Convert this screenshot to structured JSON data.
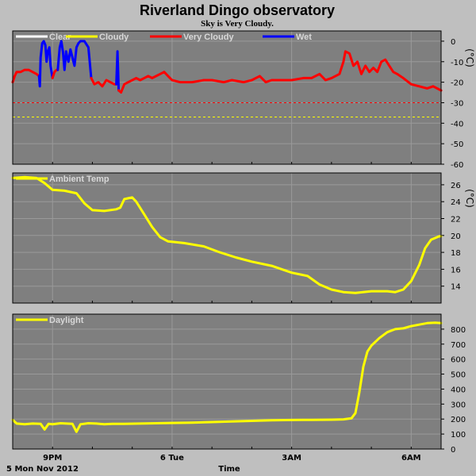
{
  "page": {
    "title": "Riverland Dingo observatory",
    "subtitle": "Sky is Very Cloudy.",
    "date_label": "5 Mon Nov 2012",
    "time_label": "Time"
  },
  "chart_data": [
    {
      "type": "line",
      "id": "sky",
      "unit": "(°C)",
      "ylim": [
        -60,
        5
      ],
      "yticks": [
        0,
        -10,
        -20,
        -30,
        -40,
        -50,
        -60
      ],
      "grid": true,
      "legend_placement": "top-left",
      "legend": [
        {
          "name": "Clear",
          "color": "#ffffff"
        },
        {
          "name": "Cloudy",
          "color": "#ffff00"
        },
        {
          "name": "Very Cloudy",
          "color": "#ff0000"
        },
        {
          "name": "Wet",
          "color": "#0000ff"
        }
      ],
      "thresholds": [
        {
          "value": -30,
          "color": "#ff0000",
          "style": "dashed"
        },
        {
          "value": -37,
          "color": "#ffff00",
          "style": "dashed"
        }
      ],
      "segments": [
        {
          "color": "#ff0000",
          "points": [
            [
              0,
              -20
            ],
            [
              0.05,
              -17
            ],
            [
              0.1,
              -15
            ],
            [
              0.2,
              -15
            ],
            [
              0.3,
              -14
            ],
            [
              0.4,
              -14
            ],
            [
              0.5,
              -15
            ],
            [
              0.6,
              -16
            ],
            [
              0.66,
              -17
            ]
          ]
        },
        {
          "color": "#0000ff",
          "points": [
            [
              0.66,
              -17
            ],
            [
              0.68,
              -22
            ],
            [
              0.7,
              -8
            ],
            [
              0.74,
              -1
            ],
            [
              0.78,
              0
            ],
            [
              0.82,
              -2
            ],
            [
              0.85,
              -10
            ],
            [
              0.88,
              -5
            ],
            [
              0.92,
              -3
            ],
            [
              0.95,
              -12
            ],
            [
              1.0,
              -18
            ]
          ]
        },
        {
          "color": "#ff0000",
          "points": [
            [
              1.0,
              -18
            ],
            [
              1.05,
              -15
            ],
            [
              1.1,
              -14
            ],
            [
              1.13,
              -14
            ]
          ]
        },
        {
          "color": "#0000ff",
          "points": [
            [
              1.13,
              -14
            ],
            [
              1.18,
              -3
            ],
            [
              1.22,
              0
            ],
            [
              1.26,
              -5
            ],
            [
              1.3,
              -14
            ],
            [
              1.34,
              -5
            ],
            [
              1.37,
              -8
            ],
            [
              1.4,
              -10
            ],
            [
              1.45,
              -4
            ],
            [
              1.5,
              -8
            ],
            [
              1.55,
              -12
            ],
            [
              1.6,
              -3
            ],
            [
              1.65,
              -1
            ],
            [
              1.7,
              0
            ],
            [
              1.8,
              0
            ],
            [
              1.9,
              -3
            ],
            [
              1.97,
              -18
            ]
          ]
        },
        {
          "color": "#ff0000",
          "points": [
            [
              1.97,
              -18
            ],
            [
              2.05,
              -21
            ],
            [
              2.15,
              -20
            ],
            [
              2.25,
              -22
            ],
            [
              2.35,
              -19
            ],
            [
              2.45,
              -20
            ],
            [
              2.55,
              -21
            ],
            [
              2.6,
              -21
            ]
          ]
        },
        {
          "color": "#0000ff",
          "points": [
            [
              2.6,
              -21
            ],
            [
              2.63,
              -5
            ],
            [
              2.66,
              -24
            ]
          ]
        },
        {
          "color": "#ff0000",
          "points": [
            [
              2.66,
              -24
            ],
            [
              2.72,
              -25
            ],
            [
              2.8,
              -21
            ],
            [
              2.9,
              -20
            ],
            [
              3.0,
              -19
            ],
            [
              3.1,
              -18
            ],
            [
              3.2,
              -19
            ],
            [
              3.3,
              -18
            ],
            [
              3.4,
              -17
            ],
            [
              3.5,
              -18
            ],
            [
              3.6,
              -17
            ],
            [
              3.7,
              -16
            ],
            [
              3.8,
              -15
            ],
            [
              3.9,
              -17
            ],
            [
              4.0,
              -19
            ],
            [
              4.2,
              -20
            ],
            [
              4.5,
              -20
            ],
            [
              4.8,
              -19
            ],
            [
              5.0,
              -19
            ],
            [
              5.3,
              -20
            ],
            [
              5.5,
              -19
            ],
            [
              5.8,
              -20
            ],
            [
              6.0,
              -19
            ],
            [
              6.2,
              -17
            ],
            [
              6.35,
              -20
            ],
            [
              6.5,
              -19
            ],
            [
              6.8,
              -19
            ],
            [
              7.0,
              -19
            ],
            [
              7.3,
              -18
            ],
            [
              7.5,
              -18
            ],
            [
              7.7,
              -16
            ],
            [
              7.85,
              -19
            ],
            [
              8.0,
              -18
            ],
            [
              8.2,
              -16
            ],
            [
              8.3,
              -10
            ],
            [
              8.35,
              -5
            ],
            [
              8.45,
              -6
            ],
            [
              8.55,
              -12
            ],
            [
              8.65,
              -10
            ],
            [
              8.75,
              -16
            ],
            [
              8.85,
              -12
            ],
            [
              8.95,
              -15
            ],
            [
              9.05,
              -13
            ],
            [
              9.15,
              -15
            ],
            [
              9.25,
              -10
            ],
            [
              9.35,
              -9
            ],
            [
              9.45,
              -12
            ],
            [
              9.55,
              -15
            ],
            [
              9.65,
              -16
            ],
            [
              9.8,
              -18
            ],
            [
              10.0,
              -21
            ],
            [
              10.2,
              -22
            ],
            [
              10.4,
              -23
            ],
            [
              10.55,
              -22
            ],
            [
              10.75,
              -24
            ]
          ]
        }
      ]
    },
    {
      "type": "line",
      "id": "ambient",
      "unit": "(°C)",
      "ylim": [
        12,
        27.4
      ],
      "yticks": [
        26,
        24,
        22,
        20,
        18,
        16,
        14
      ],
      "grid": true,
      "legend_placement": "top-left",
      "legend": [
        {
          "name": "Ambient Temp",
          "color": "#ffff00"
        }
      ],
      "series": [
        {
          "name": "Ambient Temp",
          "color": "#ffff00",
          "points": [
            [
              0,
              26.8
            ],
            [
              0.3,
              26.9
            ],
            [
              0.6,
              26.8
            ],
            [
              0.8,
              26.2
            ],
            [
              1.0,
              25.4
            ],
            [
              1.3,
              25.3
            ],
            [
              1.6,
              25.0
            ],
            [
              1.8,
              23.8
            ],
            [
              2.0,
              23.0
            ],
            [
              2.3,
              22.9
            ],
            [
              2.6,
              23.1
            ],
            [
              2.7,
              23.3
            ],
            [
              2.8,
              24.3
            ],
            [
              2.9,
              24.4
            ],
            [
              3.0,
              24.5
            ],
            [
              3.1,
              24.0
            ],
            [
              3.3,
              22.5
            ],
            [
              3.5,
              21.0
            ],
            [
              3.7,
              19.8
            ],
            [
              3.9,
              19.3
            ],
            [
              4.3,
              19.1
            ],
            [
              4.8,
              18.7
            ],
            [
              5.2,
              18.0
            ],
            [
              5.6,
              17.4
            ],
            [
              6.0,
              16.9
            ],
            [
              6.5,
              16.4
            ],
            [
              7.0,
              15.6
            ],
            [
              7.4,
              15.2
            ],
            [
              7.7,
              14.2
            ],
            [
              8.0,
              13.6
            ],
            [
              8.3,
              13.3
            ],
            [
              8.6,
              13.2
            ],
            [
              9.0,
              13.4
            ],
            [
              9.4,
              13.4
            ],
            [
              9.6,
              13.3
            ],
            [
              9.8,
              13.6
            ],
            [
              10.0,
              14.6
            ],
            [
              10.2,
              16.5
            ],
            [
              10.35,
              18.5
            ],
            [
              10.5,
              19.5
            ],
            [
              10.6,
              19.7
            ],
            [
              10.7,
              19.9
            ],
            [
              10.75,
              19.9
            ]
          ]
        }
      ]
    },
    {
      "type": "line",
      "id": "daylight",
      "unit": "",
      "ylim": [
        0,
        900
      ],
      "yticks": [
        800,
        700,
        600,
        500,
        400,
        300,
        200,
        100,
        0
      ],
      "grid": true,
      "legend_placement": "top-left",
      "legend": [
        {
          "name": "Daylight",
          "color": "#ffff00"
        }
      ],
      "series": [
        {
          "name": "Daylight",
          "color": "#ffff00",
          "points": [
            [
              0,
              195
            ],
            [
              0.1,
              170
            ],
            [
              0.3,
              165
            ],
            [
              0.5,
              170
            ],
            [
              0.7,
              168
            ],
            [
              0.8,
              130
            ],
            [
              0.9,
              168
            ],
            [
              1.0,
              165
            ],
            [
              1.2,
              172
            ],
            [
              1.5,
              168
            ],
            [
              1.6,
              115
            ],
            [
              1.7,
              165
            ],
            [
              1.9,
              172
            ],
            [
              2.1,
              170
            ],
            [
              2.3,
              165
            ],
            [
              2.5,
              168
            ],
            [
              2.8,
              168
            ],
            [
              3.2,
              170
            ],
            [
              3.6,
              172
            ],
            [
              4.0,
              174
            ],
            [
              4.5,
              176
            ],
            [
              5.0,
              180
            ],
            [
              5.5,
              184
            ],
            [
              6.0,
              188
            ],
            [
              6.5,
              192
            ],
            [
              7.0,
              194
            ],
            [
              7.5,
              195
            ],
            [
              8.0,
              196
            ],
            [
              8.3,
              198
            ],
            [
              8.5,
              205
            ],
            [
              8.6,
              240
            ],
            [
              8.7,
              380
            ],
            [
              8.8,
              550
            ],
            [
              8.9,
              650
            ],
            [
              9.0,
              690
            ],
            [
              9.2,
              740
            ],
            [
              9.4,
              780
            ],
            [
              9.6,
              800
            ],
            [
              9.8,
              805
            ],
            [
              10.0,
              820
            ],
            [
              10.2,
              830
            ],
            [
              10.4,
              840
            ],
            [
              10.6,
              843
            ],
            [
              10.75,
              840
            ]
          ]
        }
      ]
    }
  ],
  "x_axis": {
    "range": [
      0,
      10.75
    ],
    "ticks": [
      {
        "value": 1.0,
        "label": "9PM"
      },
      {
        "value": 4.0,
        "label": "6 Tue"
      },
      {
        "value": 7.0,
        "label": "3AM"
      },
      {
        "value": 10.0,
        "label": "6AM"
      }
    ],
    "minor_ticks": [
      0,
      1,
      2,
      3,
      4,
      5,
      6,
      7,
      8,
      9,
      10
    ]
  },
  "colors": {
    "page_bg": "#bfbfbf",
    "plot_bg": "#7f7f7f",
    "grid": "#9a9a9a",
    "frame": "#000000"
  }
}
